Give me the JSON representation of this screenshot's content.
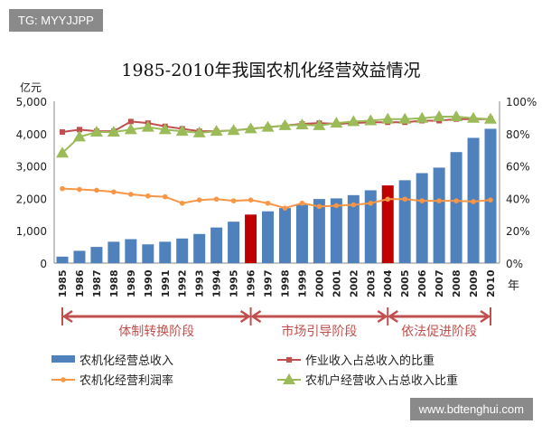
{
  "watermarks": {
    "top_left": "TG: MYYJJPP",
    "bottom_right": "www.bdtenghui.com"
  },
  "chart_data": {
    "type": "bar",
    "title": "1985-2010年我国农机化经营效益情况",
    "ylabel_left": "亿元",
    "xlabel": "年",
    "ylim_left": [
      0,
      5000
    ],
    "ylim_right": [
      0,
      100
    ],
    "left_ticks": [
      "0",
      "1,000",
      "2,000",
      "3,000",
      "4,000",
      "5,000"
    ],
    "right_ticks": [
      "0%",
      "20%",
      "40%",
      "60%",
      "80%",
      "100%"
    ],
    "grid": false,
    "legend_placement": "bottom",
    "categories": [
      "1985",
      "1986",
      "1987",
      "1988",
      "1989",
      "1990",
      "1991",
      "1992",
      "1993",
      "1994",
      "1995",
      "1996",
      "1997",
      "1998",
      "1999",
      "2000",
      "2001",
      "2002",
      "2003",
      "2004",
      "2005",
      "2006",
      "2007",
      "2008",
      "2009",
      "2010"
    ],
    "highlighted_years": [
      "1996",
      "2004"
    ],
    "colors": {
      "bar": "#4f81bd",
      "bar_highlight": "#c00000",
      "ratio_work": "#c0504d",
      "profit": "#f79646",
      "household": "#9bbb59",
      "phase": "#c0504d"
    },
    "series": [
      {
        "name": "农机化经营总收入",
        "type": "bar",
        "axis": "left",
        "values": [
          200,
          380,
          500,
          660,
          740,
          580,
          660,
          760,
          900,
          1100,
          1280,
          1500,
          1600,
          1700,
          1800,
          1980,
          2000,
          2100,
          2250,
          2400,
          2560,
          2780,
          2950,
          3430,
          3870,
          4150
        ]
      },
      {
        "name": "作业收入占总收入的比重",
        "type": "line",
        "axis": "right",
        "marker": "square",
        "values": [
          81,
          82.5,
          81.5,
          81.5,
          87.5,
          86.5,
          84.5,
          83,
          81.5,
          81.5,
          82,
          83,
          84,
          85,
          86,
          86.5,
          86,
          86.5,
          87,
          87,
          87,
          88,
          88,
          89,
          89,
          89
        ]
      },
      {
        "name": "农机化经营利润率",
        "type": "line",
        "axis": "right",
        "marker": "circle",
        "values": [
          46,
          45.5,
          45,
          44,
          42.5,
          41.5,
          41,
          37,
          39,
          39.5,
          38.5,
          39,
          37,
          34,
          37,
          35,
          35.5,
          36,
          37,
          39.5,
          39.5,
          38.5,
          38.5,
          38.5,
          38,
          39
        ]
      },
      {
        "name": "农机户经营收入占总收入比重",
        "type": "line",
        "axis": "right",
        "marker": "triangle",
        "values": [
          68,
          78,
          81,
          81,
          82.5,
          84,
          82.5,
          81.5,
          80.5,
          81.5,
          82,
          83,
          84,
          85,
          85.5,
          85,
          86.5,
          87.5,
          88,
          89,
          89,
          89.5,
          90.5,
          90.5,
          89.5,
          89
        ]
      }
    ],
    "phases": [
      {
        "label": "体制转换阶段",
        "from": "1985",
        "to": "1996"
      },
      {
        "label": "市场引导阶段",
        "from": "1996",
        "to": "2004"
      },
      {
        "label": "依法促进阶段",
        "from": "2004",
        "to": "2010"
      }
    ]
  }
}
